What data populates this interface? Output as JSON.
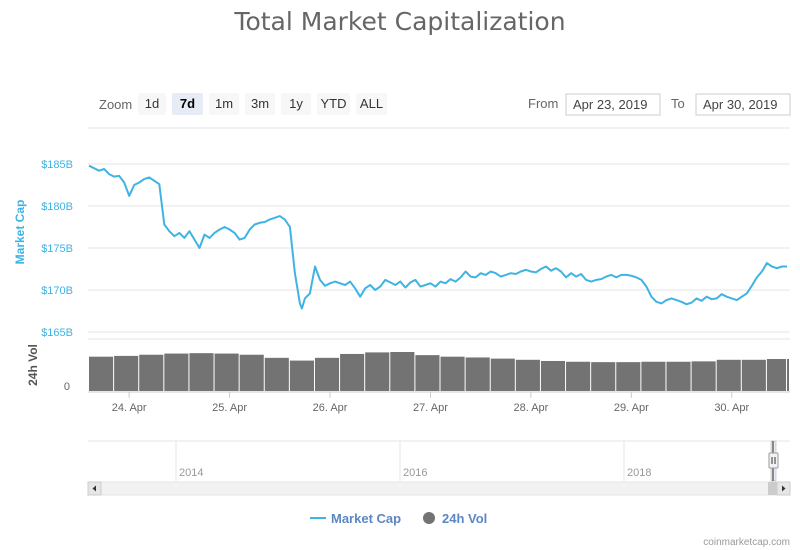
{
  "title": "Total Market Capitalization",
  "colors": {
    "line": "#3fb3e3",
    "bars": "#737373",
    "legend_text": "#5b87c5"
  },
  "range_selector": {
    "zoom_label": "Zoom",
    "buttons": [
      "1d",
      "7d",
      "1m",
      "3m",
      "1y",
      "YTD",
      "ALL"
    ],
    "active": "7d",
    "from_label": "From",
    "from_value": "Apr 23, 2019",
    "to_label": "To",
    "to_value": "Apr 30, 2019"
  },
  "navigator": {
    "labels": [
      "2014",
      "2016",
      "2018"
    ]
  },
  "legend": [
    "Market Cap",
    "24h Vol"
  ],
  "credit": "coinmarketcap.com",
  "chart_data": {
    "type": "line",
    "title": "Total Market Capitalization",
    "x_ticks": [
      "24. Apr",
      "25. Apr",
      "26. Apr",
      "27. Apr",
      "28. Apr",
      "29. Apr",
      "30. Apr"
    ],
    "x_range": [
      "Apr 23, 2019",
      "Apr 30, 2019"
    ],
    "y_axis": {
      "label": "Market Cap",
      "ticks": [
        "$165B",
        "$170B",
        "$175B",
        "$180B",
        "$185B"
      ],
      "min": 165,
      "max": 185,
      "unit": "$B"
    },
    "y2_axis": {
      "label": "24h Vol",
      "ticks": [
        "0"
      ]
    },
    "grid": true,
    "legend_position": "bottom",
    "series": [
      {
        "name": "Market Cap",
        "type": "line",
        "x": [
          23.6,
          23.65,
          23.7,
          23.75,
          23.8,
          23.85,
          23.9,
          23.95,
          24.0,
          24.05,
          24.1,
          24.15,
          24.2,
          24.25,
          24.3,
          24.35,
          24.4,
          24.45,
          24.5,
          24.55,
          24.6,
          24.65,
          24.7,
          24.75,
          24.8,
          24.85,
          24.9,
          24.95,
          25.0,
          25.05,
          25.1,
          25.15,
          25.2,
          25.25,
          25.3,
          25.35,
          25.4,
          25.45,
          25.5,
          25.55,
          25.6,
          25.65,
          25.7,
          25.72,
          25.75,
          25.8,
          25.85,
          25.9,
          25.95,
          26.0,
          26.05,
          26.1,
          26.15,
          26.2,
          26.25,
          26.3,
          26.35,
          26.4,
          26.45,
          26.5,
          26.55,
          26.6,
          26.65,
          26.7,
          26.75,
          26.8,
          26.85,
          26.9,
          26.95,
          27.0,
          27.05,
          27.1,
          27.15,
          27.2,
          27.25,
          27.3,
          27.35,
          27.4,
          27.45,
          27.5,
          27.55,
          27.6,
          27.65,
          27.7,
          27.75,
          27.8,
          27.85,
          27.9,
          27.95,
          28.0,
          28.05,
          28.1,
          28.15,
          28.2,
          28.25,
          28.3,
          28.35,
          28.4,
          28.45,
          28.5,
          28.55,
          28.6,
          28.65,
          28.7,
          28.75,
          28.8,
          28.85,
          28.9,
          28.95,
          29.0,
          29.05,
          29.1,
          29.15,
          29.2,
          29.25,
          29.3,
          29.35,
          29.4,
          29.45,
          29.5,
          29.55,
          29.6,
          29.65,
          29.7,
          29.75,
          29.8,
          29.85,
          29.9,
          29.95,
          30.0,
          30.05,
          30.1,
          30.15,
          30.2,
          30.25,
          30.3,
          30.35,
          30.4,
          30.45,
          30.5,
          30.55
        ],
        "y": [
          184.8,
          184.5,
          184.2,
          184.4,
          183.8,
          183.5,
          183.6,
          182.8,
          181.2,
          182.5,
          182.8,
          183.2,
          183.4,
          183.0,
          182.6,
          177.8,
          177.0,
          176.4,
          176.8,
          176.2,
          177.0,
          176.0,
          175.0,
          176.6,
          176.2,
          176.8,
          177.2,
          177.5,
          177.2,
          176.8,
          176.0,
          176.2,
          177.2,
          177.8,
          178.0,
          178.1,
          178.4,
          178.6,
          178.8,
          178.4,
          177.5,
          172.0,
          168.4,
          167.8,
          169.0,
          169.6,
          172.8,
          171.2,
          170.5,
          170.8,
          171.0,
          170.8,
          170.6,
          171.0,
          170.2,
          169.2,
          170.2,
          170.6,
          170.0,
          170.4,
          171.2,
          170.9,
          170.6,
          171.0,
          170.3,
          170.9,
          171.2,
          170.4,
          170.6,
          170.8,
          170.4,
          171.0,
          170.8,
          171.3,
          171.0,
          171.5,
          172.2,
          171.6,
          171.5,
          172.0,
          171.8,
          172.2,
          172.0,
          171.6,
          171.8,
          172.0,
          171.9,
          172.2,
          172.4,
          172.2,
          172.1,
          172.5,
          172.8,
          172.3,
          172.6,
          172.2,
          171.5,
          172.0,
          171.6,
          171.9,
          171.2,
          171.0,
          171.2,
          171.3,
          171.6,
          171.8,
          171.5,
          171.8,
          171.8,
          171.7,
          171.5,
          171.2,
          170.4,
          169.2,
          168.6,
          168.4,
          168.8,
          169.0,
          168.8,
          168.6,
          168.3,
          168.5,
          169.0,
          168.7,
          169.2,
          168.9,
          169.0,
          169.5,
          169.2,
          169.0,
          168.8,
          169.2,
          169.6,
          170.5,
          171.5,
          172.2,
          173.2,
          172.8,
          172.6,
          172.8,
          172.8
        ]
      },
      {
        "name": "24h Vol",
        "type": "column",
        "x": [
          23.6,
          23.85,
          24.1,
          24.35,
          24.6,
          24.85,
          25.1,
          25.35,
          25.6,
          25.85,
          26.1,
          26.35,
          26.6,
          26.85,
          27.1,
          27.35,
          27.6,
          27.85,
          28.1,
          28.35,
          28.6,
          28.85,
          29.1,
          29.35,
          29.6,
          29.85,
          30.1,
          30.35,
          30.55
        ],
        "relative_height": [
          0.88,
          0.9,
          0.93,
          0.96,
          0.97,
          0.96,
          0.93,
          0.85,
          0.78,
          0.85,
          0.95,
          0.99,
          1.0,
          0.92,
          0.88,
          0.86,
          0.83,
          0.8,
          0.77,
          0.75,
          0.74,
          0.74,
          0.75,
          0.75,
          0.76,
          0.8,
          0.8,
          0.82,
          0.82
        ]
      }
    ]
  }
}
